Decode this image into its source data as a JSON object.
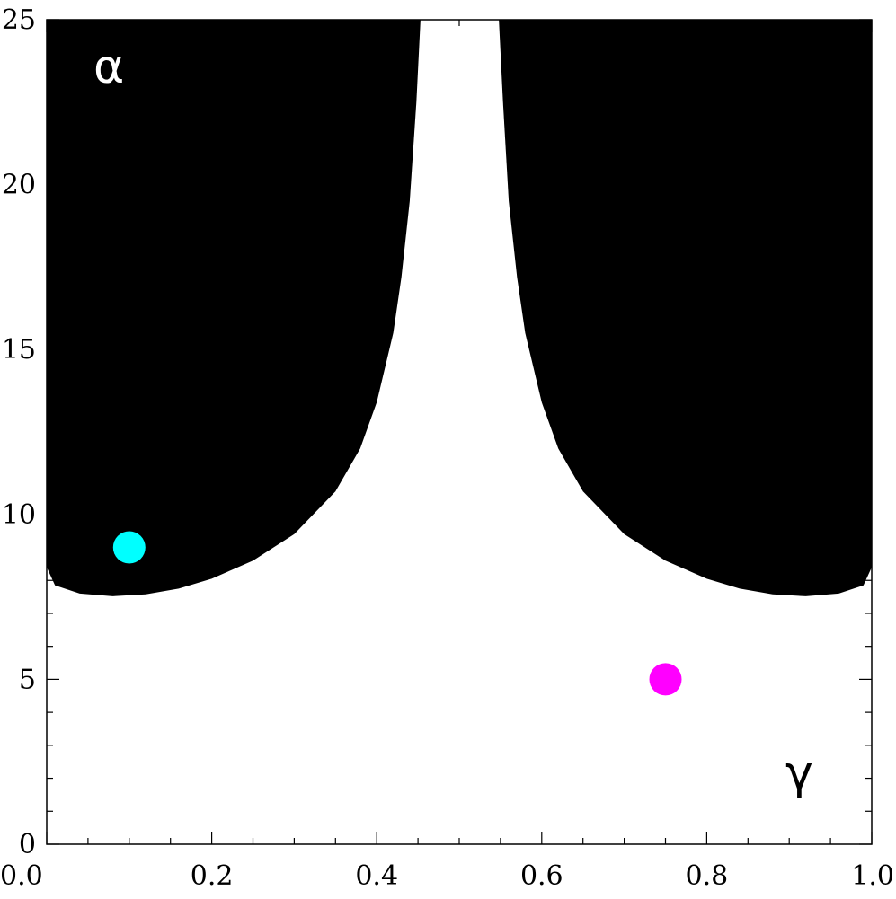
{
  "chart_data": {
    "type": "area",
    "title": "",
    "xlabel": "",
    "ylabel": "",
    "xlim": [
      0.0,
      1.0
    ],
    "ylim": [
      0,
      25
    ],
    "x_ticks": [
      0.0,
      0.2,
      0.4,
      0.6,
      0.8,
      1.0
    ],
    "x_tick_labels": [
      "0.0",
      "0.2",
      "0.4",
      "0.6",
      "0.8",
      "1.0"
    ],
    "y_ticks": [
      0,
      5,
      10,
      15,
      20,
      25
    ],
    "y_tick_labels": [
      "0",
      "5",
      "10",
      "15",
      "20",
      "25"
    ],
    "grid": false,
    "regions": [
      {
        "fill": "#000000",
        "boundary": [
          [
            0.0,
            25.0
          ],
          [
            0.0,
            8.4
          ],
          [
            0.01,
            7.85
          ],
          [
            0.04,
            7.6
          ],
          [
            0.08,
            7.52
          ],
          [
            0.12,
            7.58
          ],
          [
            0.16,
            7.75
          ],
          [
            0.2,
            8.05
          ],
          [
            0.25,
            8.6
          ],
          [
            0.3,
            9.4
          ],
          [
            0.35,
            10.7
          ],
          [
            0.38,
            12.0
          ],
          [
            0.4,
            13.4
          ],
          [
            0.42,
            15.5
          ],
          [
            0.43,
            17.2
          ],
          [
            0.44,
            19.5
          ],
          [
            0.448,
            22.5
          ],
          [
            0.453,
            25.0
          ]
        ]
      },
      {
        "fill": "#000000",
        "boundary": [
          [
            0.548,
            25.0
          ],
          [
            0.553,
            22.5
          ],
          [
            0.56,
            19.5
          ],
          [
            0.57,
            17.2
          ],
          [
            0.58,
            15.5
          ],
          [
            0.6,
            13.4
          ],
          [
            0.62,
            12.0
          ],
          [
            0.65,
            10.7
          ],
          [
            0.7,
            9.4
          ],
          [
            0.75,
            8.6
          ],
          [
            0.8,
            8.05
          ],
          [
            0.84,
            7.75
          ],
          [
            0.88,
            7.58
          ],
          [
            0.92,
            7.52
          ],
          [
            0.96,
            7.6
          ],
          [
            0.99,
            7.85
          ],
          [
            1.0,
            8.4
          ],
          [
            1.0,
            25.0
          ]
        ]
      }
    ],
    "series": [
      {
        "type": "scatter",
        "x": [
          0.1
        ],
        "y": [
          9.0
        ],
        "color": "#00ffff"
      },
      {
        "type": "scatter",
        "x": [
          0.75
        ],
        "y": [
          5.0
        ],
        "color": "#ff00ff"
      }
    ],
    "annotations": [
      {
        "text": "α",
        "color": "#ffffff"
      },
      {
        "text": "γ",
        "color": "#000000"
      }
    ]
  }
}
